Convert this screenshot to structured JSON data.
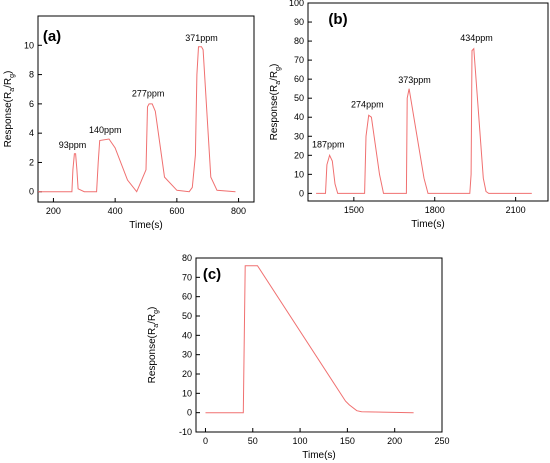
{
  "colors": {
    "series": "#f07070",
    "axis": "#000000",
    "background": "#ffffff"
  },
  "chart_data": [
    {
      "type": "line",
      "panel_label": "(a)",
      "xlabel": "Time(s)",
      "ylabel_main": "Response(R",
      "ylabel_sub1": "a",
      "ylabel_mid": "/R",
      "ylabel_sub2": "g",
      "ylabel_end": ")",
      "xlim": [
        150,
        850
      ],
      "ylim": [
        -0.7,
        12
      ],
      "xticks": [
        200,
        400,
        600,
        800
      ],
      "yticks": [
        0,
        2,
        4,
        6,
        8,
        10
      ],
      "grid": false,
      "series": [
        {
          "x": [
            150,
            260,
            263,
            268,
            272,
            276,
            280,
            300,
            340,
            345,
            350,
            380,
            400,
            440,
            470,
            480,
            500,
            505,
            510,
            520,
            530,
            560,
            600,
            640,
            650,
            660,
            665,
            670,
            680,
            685,
            710,
            730,
            790
          ],
          "y": [
            0,
            0,
            1.5,
            2.6,
            2.6,
            1.5,
            0.2,
            0,
            0,
            2.0,
            3.5,
            3.6,
            3.0,
            0.8,
            0,
            0.5,
            1.5,
            5.8,
            6.0,
            6.0,
            5.5,
            1.0,
            0.1,
            0,
            0.3,
            2.5,
            8.0,
            9.9,
            9.9,
            9.7,
            1.0,
            0.1,
            0
          ]
        }
      ],
      "annotations": [
        {
          "text": "93ppm",
          "x": 262,
          "y": 3.0
        },
        {
          "text": "140ppm",
          "x": 368,
          "y": 4.0
        },
        {
          "text": "277ppm",
          "x": 507,
          "y": 6.5
        },
        {
          "text": "371ppm",
          "x": 680,
          "y": 10.3
        }
      ]
    },
    {
      "type": "line",
      "panel_label": "(b)",
      "xlabel": "Time(s)",
      "ylabel_main": "Response(R",
      "ylabel_sub1": "a",
      "ylabel_mid": "/R",
      "ylabel_sub2": "g",
      "ylabel_end": ")",
      "xlim": [
        1330,
        2220
      ],
      "ylim": [
        -4,
        100
      ],
      "xticks": [
        1500,
        1800,
        2100
      ],
      "yticks": [
        0,
        10,
        20,
        30,
        40,
        50,
        60,
        70,
        80,
        90,
        100
      ],
      "grid": false,
      "series": [
        {
          "x": [
            1360,
            1395,
            1400,
            1410,
            1420,
            1430,
            1440,
            1470,
            1540,
            1545,
            1555,
            1565,
            1595,
            1610,
            1690,
            1695,
            1698,
            1705,
            1760,
            1775,
            1790,
            1930,
            1935,
            1938,
            1945,
            1980,
            1990,
            2000,
            2160
          ],
          "y": [
            0,
            0,
            15,
            20,
            17,
            5,
            0,
            0,
            0,
            30,
            41,
            40,
            10,
            0,
            0,
            0,
            50,
            55,
            8,
            0,
            0,
            0,
            10,
            75,
            76,
            8,
            1,
            0,
            0
          ]
        }
      ],
      "annotations": [
        {
          "text": "187ppm",
          "x": 1405,
          "y": 24
        },
        {
          "text": "274ppm",
          "x": 1550,
          "y": 45
        },
        {
          "text": "373ppm",
          "x": 1725,
          "y": 58
        },
        {
          "text": "434ppm",
          "x": 1955,
          "y": 80
        }
      ]
    },
    {
      "type": "line",
      "panel_label": "(c)",
      "xlabel": "Time(s)",
      "ylabel_main": "Response(R",
      "ylabel_sub1": "a",
      "ylabel_mid": "/R",
      "ylabel_sub2": "g",
      "ylabel_end": ")",
      "xlim": [
        -10,
        250
      ],
      "ylim": [
        -10,
        80
      ],
      "xticks": [
        0,
        50,
        100,
        150,
        200,
        250
      ],
      "yticks": [
        -10,
        0,
        10,
        20,
        30,
        40,
        50,
        60,
        70,
        80
      ],
      "grid": false,
      "series": [
        {
          "x": [
            0,
            40,
            42,
            45,
            55,
            148,
            152,
            160,
            165,
            220
          ],
          "y": [
            0,
            0,
            76,
            76,
            76,
            6,
            4,
            1,
            0.5,
            0
          ]
        }
      ],
      "annotations": []
    }
  ]
}
